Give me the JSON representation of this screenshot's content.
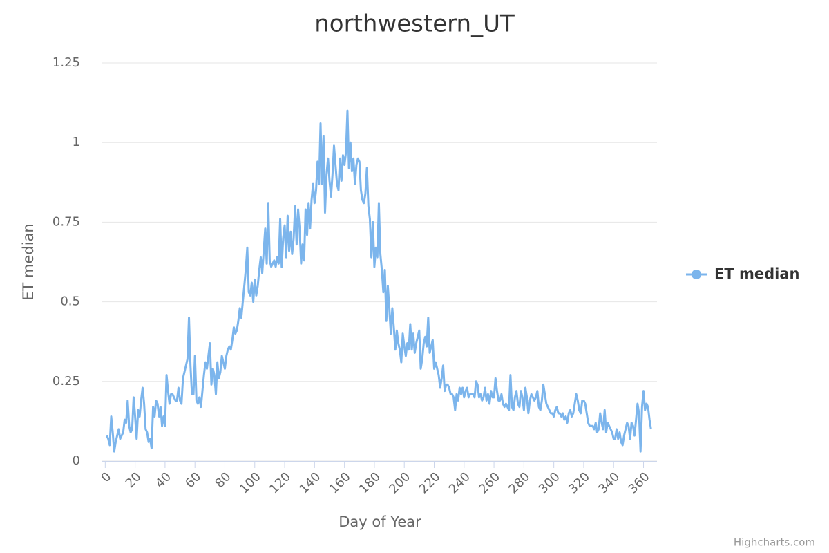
{
  "chart_data": {
    "type": "line",
    "title": "northwestern_UT",
    "x_label": "Day of Year",
    "y_label": "ET median",
    "credits": "Highcharts.com",
    "xlim": [
      -2,
      369
    ],
    "xticks": [
      0,
      20,
      40,
      60,
      80,
      100,
      120,
      140,
      160,
      180,
      200,
      220,
      240,
      260,
      280,
      300,
      320,
      340,
      360
    ],
    "ylim": [
      0,
      1.25
    ],
    "yticks": [
      0,
      0.25,
      0.5,
      0.75,
      1,
      1.25
    ],
    "grid": true,
    "legend": "right",
    "x": [
      1,
      2,
      3,
      4,
      5,
      6,
      7,
      8,
      9,
      10,
      11,
      12,
      13,
      14,
      15,
      16,
      17,
      18,
      19,
      20,
      21,
      22,
      23,
      24,
      25,
      26,
      27,
      28,
      29,
      30,
      31,
      32,
      33,
      34,
      35,
      36,
      37,
      38,
      39,
      40,
      41,
      42,
      43,
      44,
      45,
      46,
      47,
      48,
      49,
      50,
      51,
      52,
      53,
      54,
      55,
      56,
      57,
      58,
      59,
      60,
      61,
      62,
      63,
      64,
      65,
      66,
      67,
      68,
      69,
      70,
      71,
      72,
      73,
      74,
      75,
      76,
      77,
      78,
      79,
      80,
      81,
      82,
      83,
      84,
      85,
      86,
      87,
      88,
      89,
      90,
      91,
      92,
      93,
      94,
      95,
      96,
      97,
      98,
      99,
      100,
      101,
      102,
      103,
      104,
      105,
      106,
      107,
      108,
      109,
      110,
      111,
      112,
      113,
      114,
      115,
      116,
      117,
      118,
      119,
      120,
      121,
      122,
      123,
      124,
      125,
      126,
      127,
      128,
      129,
      130,
      131,
      132,
      133,
      134,
      135,
      136,
      137,
      138,
      139,
      140,
      141,
      142,
      143,
      144,
      145,
      146,
      147,
      148,
      149,
      150,
      151,
      152,
      153,
      154,
      155,
      156,
      157,
      158,
      159,
      160,
      161,
      162,
      163,
      164,
      165,
      166,
      167,
      168,
      169,
      170,
      171,
      172,
      173,
      174,
      175,
      176,
      177,
      178,
      179,
      180,
      181,
      182,
      183,
      184,
      185,
      186,
      187,
      188,
      189,
      190,
      191,
      192,
      193,
      194,
      195,
      196,
      197,
      198,
      199,
      200,
      201,
      202,
      203,
      204,
      205,
      206,
      207,
      208,
      209,
      210,
      211,
      212,
      213,
      214,
      215,
      216,
      217,
      218,
      219,
      220,
      221,
      222,
      223,
      224,
      225,
      226,
      227,
      228,
      229,
      230,
      231,
      232,
      233,
      234,
      235,
      236,
      237,
      238,
      239,
      240,
      241,
      242,
      243,
      244,
      245,
      246,
      247,
      248,
      249,
      250,
      251,
      252,
      253,
      254,
      255,
      256,
      257,
      258,
      259,
      260,
      261,
      262,
      263,
      264,
      265,
      266,
      267,
      268,
      269,
      270,
      271,
      272,
      273,
      274,
      275,
      276,
      277,
      278,
      279,
      280,
      281,
      282,
      283,
      284,
      285,
      286,
      287,
      288,
      289,
      290,
      291,
      292,
      293,
      294,
      295,
      296,
      297,
      298,
      299,
      300,
      301,
      302,
      303,
      304,
      305,
      306,
      307,
      308,
      309,
      310,
      311,
      312,
      313,
      314,
      315,
      316,
      317,
      318,
      319,
      320,
      321,
      322,
      323,
      324,
      325,
      326,
      327,
      328,
      329,
      330,
      331,
      332,
      333,
      334,
      335,
      336,
      337,
      338,
      339,
      340,
      341,
      342,
      343,
      344,
      345,
      346,
      347,
      348,
      349,
      350,
      351,
      352,
      353,
      354,
      355,
      356,
      357,
      358,
      359,
      360,
      361,
      362,
      363,
      364,
      365
    ],
    "series": [
      {
        "name": "ET median",
        "color": "#7cb5ec",
        "values": [
          0.08,
          0.07,
          0.05,
          0.14,
          0.09,
          0.03,
          0.06,
          0.08,
          0.1,
          0.07,
          0.08,
          0.09,
          0.13,
          0.12,
          0.19,
          0.11,
          0.09,
          0.1,
          0.2,
          0.14,
          0.07,
          0.16,
          0.14,
          0.19,
          0.23,
          0.18,
          0.1,
          0.09,
          0.06,
          0.07,
          0.04,
          0.17,
          0.14,
          0.19,
          0.18,
          0.14,
          0.17,
          0.11,
          0.14,
          0.11,
          0.27,
          0.22,
          0.18,
          0.21,
          0.21,
          0.2,
          0.19,
          0.19,
          0.23,
          0.19,
          0.18,
          0.26,
          0.28,
          0.3,
          0.32,
          0.45,
          0.3,
          0.21,
          0.21,
          0.33,
          0.19,
          0.18,
          0.2,
          0.17,
          0.22,
          0.27,
          0.31,
          0.29,
          0.33,
          0.37,
          0.24,
          0.29,
          0.27,
          0.21,
          0.31,
          0.26,
          0.28,
          0.33,
          0.31,
          0.29,
          0.33,
          0.35,
          0.36,
          0.35,
          0.38,
          0.42,
          0.4,
          0.41,
          0.44,
          0.48,
          0.45,
          0.5,
          0.55,
          0.6,
          0.67,
          0.53,
          0.52,
          0.56,
          0.5,
          0.57,
          0.52,
          0.55,
          0.6,
          0.64,
          0.59,
          0.66,
          0.73,
          0.62,
          0.81,
          0.63,
          0.61,
          0.62,
          0.63,
          0.61,
          0.64,
          0.62,
          0.76,
          0.61,
          0.7,
          0.74,
          0.64,
          0.77,
          0.66,
          0.72,
          0.65,
          0.7,
          0.8,
          0.68,
          0.79,
          0.73,
          0.62,
          0.68,
          0.63,
          0.79,
          0.71,
          0.81,
          0.73,
          0.82,
          0.87,
          0.81,
          0.85,
          0.94,
          0.87,
          1.06,
          0.87,
          1.02,
          0.78,
          0.9,
          0.95,
          0.88,
          0.83,
          0.9,
          0.99,
          0.93,
          0.87,
          0.85,
          0.95,
          0.88,
          0.96,
          0.93,
          0.97,
          1.1,
          0.92,
          1.0,
          0.91,
          0.95,
          0.87,
          0.93,
          0.95,
          0.94,
          0.85,
          0.82,
          0.81,
          0.84,
          0.92,
          0.8,
          0.76,
          0.64,
          0.75,
          0.61,
          0.67,
          0.64,
          0.81,
          0.65,
          0.6,
          0.53,
          0.6,
          0.44,
          0.55,
          0.48,
          0.4,
          0.48,
          0.42,
          0.35,
          0.41,
          0.37,
          0.35,
          0.31,
          0.4,
          0.36,
          0.33,
          0.37,
          0.35,
          0.43,
          0.35,
          0.4,
          0.34,
          0.37,
          0.39,
          0.41,
          0.29,
          0.32,
          0.37,
          0.39,
          0.36,
          0.45,
          0.34,
          0.36,
          0.38,
          0.29,
          0.31,
          0.29,
          0.27,
          0.23,
          0.26,
          0.3,
          0.22,
          0.24,
          0.24,
          0.23,
          0.21,
          0.21,
          0.2,
          0.16,
          0.21,
          0.19,
          0.23,
          0.21,
          0.23,
          0.2,
          0.22,
          0.23,
          0.2,
          0.21,
          0.21,
          0.21,
          0.2,
          0.25,
          0.24,
          0.2,
          0.21,
          0.19,
          0.2,
          0.23,
          0.19,
          0.21,
          0.18,
          0.22,
          0.2,
          0.2,
          0.26,
          0.22,
          0.19,
          0.19,
          0.21,
          0.18,
          0.17,
          0.18,
          0.17,
          0.16,
          0.27,
          0.17,
          0.16,
          0.2,
          0.22,
          0.18,
          0.17,
          0.22,
          0.2,
          0.16,
          0.23,
          0.2,
          0.15,
          0.19,
          0.21,
          0.2,
          0.19,
          0.2,
          0.22,
          0.17,
          0.16,
          0.19,
          0.24,
          0.21,
          0.18,
          0.17,
          0.16,
          0.15,
          0.15,
          0.14,
          0.16,
          0.17,
          0.15,
          0.15,
          0.14,
          0.15,
          0.13,
          0.14,
          0.12,
          0.15,
          0.16,
          0.14,
          0.15,
          0.18,
          0.21,
          0.19,
          0.16,
          0.15,
          0.19,
          0.19,
          0.18,
          0.15,
          0.12,
          0.11,
          0.11,
          0.11,
          0.1,
          0.12,
          0.09,
          0.1,
          0.15,
          0.12,
          0.1,
          0.16,
          0.09,
          0.12,
          0.11,
          0.1,
          0.09,
          0.07,
          0.07,
          0.1,
          0.07,
          0.09,
          0.06,
          0.05,
          0.08,
          0.1,
          0.12,
          0.11,
          0.07,
          0.12,
          0.11,
          0.08,
          0.13,
          0.18,
          0.15,
          0.03,
          0.17,
          0.22,
          0.16,
          0.18,
          0.17,
          0.13,
          0.1
        ]
      }
    ]
  }
}
